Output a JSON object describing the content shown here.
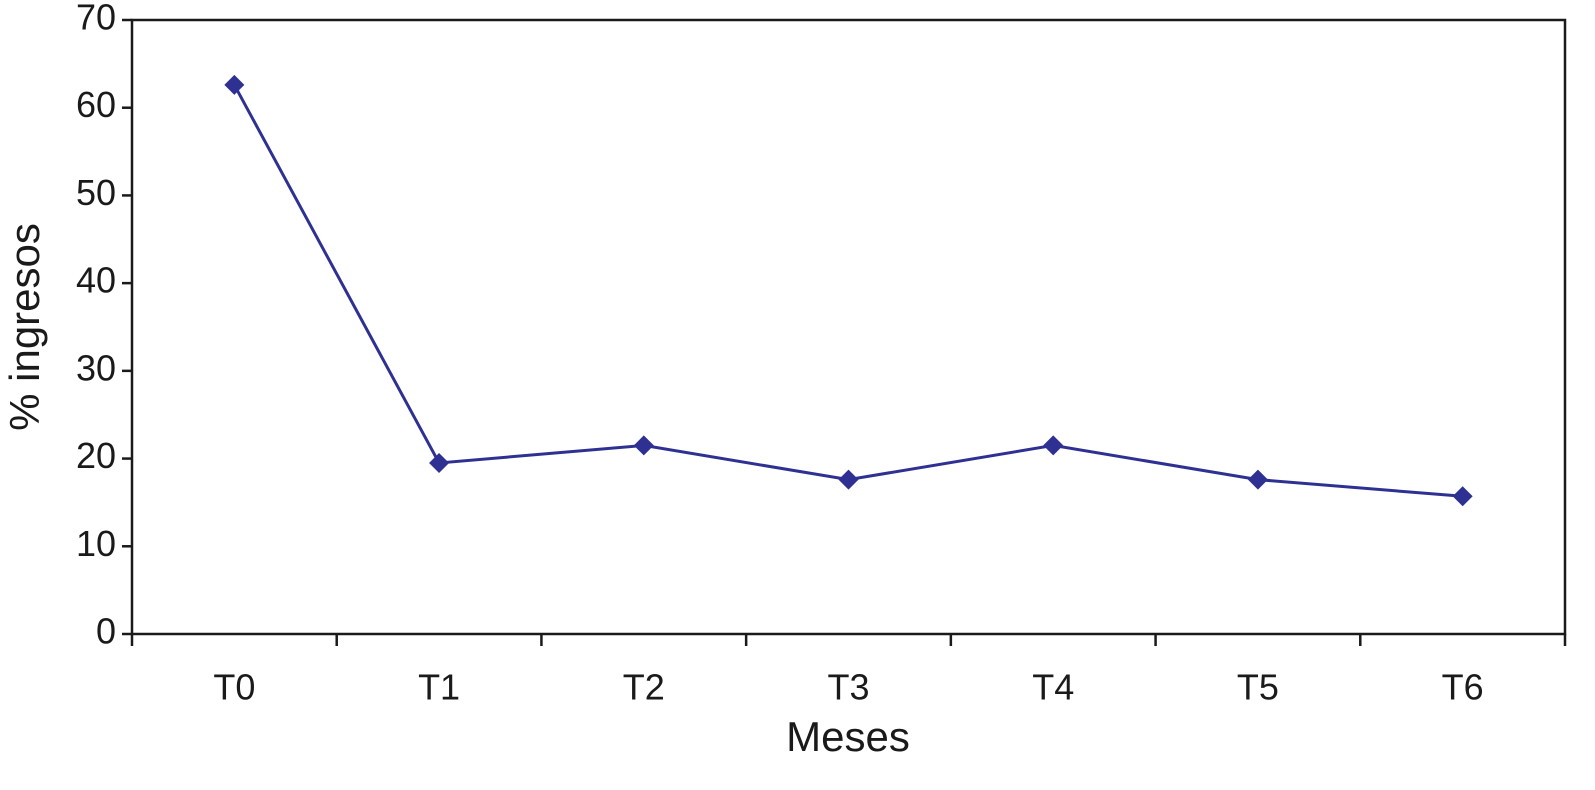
{
  "chart_data": {
    "type": "line",
    "x_label": "Meses",
    "y_label": "% ingresos",
    "categories": [
      "T0",
      "T1",
      "T2",
      "T3",
      "T4",
      "T5",
      "T6"
    ],
    "series": [
      {
        "color": "#2e3192",
        "values": [
          62.6,
          19.5,
          21.5,
          17.6,
          21.5,
          17.6,
          15.7
        ]
      }
    ],
    "ylim": [
      0,
      70
    ],
    "yticks": [
      0,
      10,
      20,
      30,
      40,
      50,
      60,
      70
    ],
    "grid": false
  }
}
